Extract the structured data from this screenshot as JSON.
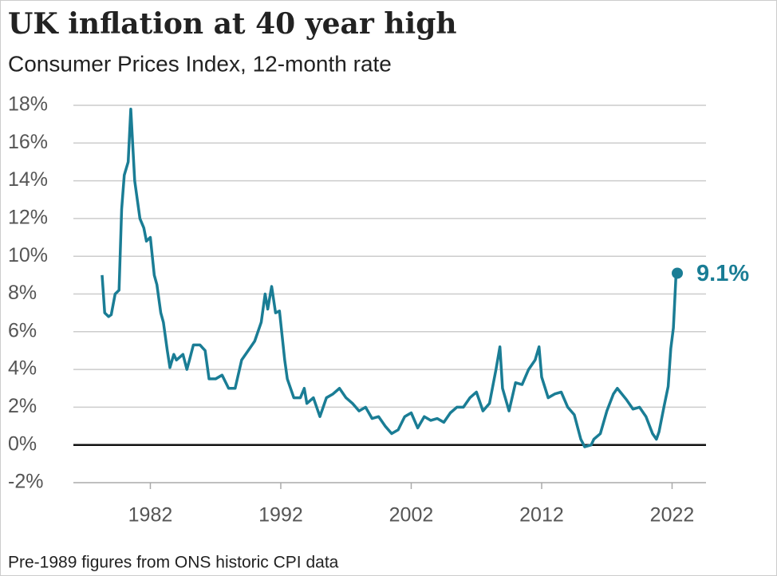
{
  "chart_data": {
    "type": "line",
    "title": "UK inflation at 40 year high",
    "subtitle": "Consumer Prices Index, 12-month rate",
    "footnote": "Pre-1989 figures from ONS historic CPI data",
    "x": [
      1978.3,
      1978.5,
      1978.8,
      1979.0,
      1979.3,
      1979.6,
      1979.8,
      1980.0,
      1980.3,
      1980.5,
      1980.8,
      1981.0,
      1981.2,
      1981.5,
      1981.7,
      1982.0,
      1982.3,
      1982.5,
      1982.8,
      1983.0,
      1983.3,
      1983.5,
      1983.8,
      1984.0,
      1984.5,
      1984.8,
      1985.0,
      1985.3,
      1985.8,
      1986.2,
      1986.5,
      1987.0,
      1987.5,
      1988.0,
      1988.5,
      1989.0,
      1989.5,
      1990.0,
      1990.5,
      1990.8,
      1991.0,
      1991.3,
      1991.6,
      1991.9,
      1992.3,
      1992.5,
      1993.0,
      1993.5,
      1993.8,
      1994.0,
      1994.5,
      1995.0,
      1995.5,
      1996.0,
      1996.5,
      1997.0,
      1997.5,
      1998.0,
      1998.5,
      1999.0,
      1999.5,
      2000.0,
      2000.5,
      2001.0,
      2001.5,
      2002.0,
      2002.5,
      2003.0,
      2003.5,
      2004.0,
      2004.5,
      2005.0,
      2005.5,
      2006.0,
      2006.5,
      2007.0,
      2007.5,
      2008.0,
      2008.5,
      2008.8,
      2009.0,
      2009.5,
      2010.0,
      2010.5,
      2011.0,
      2011.5,
      2011.8,
      2012.0,
      2012.5,
      2013.0,
      2013.5,
      2014.0,
      2014.5,
      2015.0,
      2015.3,
      2015.8,
      2016.0,
      2016.5,
      2017.0,
      2017.5,
      2017.8,
      2018.5,
      2019.0,
      2019.5,
      2020.0,
      2020.5,
      2020.8,
      2021.0,
      2021.4,
      2021.7,
      2021.9,
      2022.1,
      2022.3,
      2022.4
    ],
    "series": [
      {
        "name": "CPI",
        "color": "#1a7d95",
        "values": [
          9.0,
          7.0,
          6.8,
          6.9,
          8.0,
          8.2,
          12.5,
          14.3,
          15.0,
          17.8,
          14.0,
          13.0,
          12.0,
          11.5,
          10.8,
          11.0,
          9.0,
          8.5,
          7.0,
          6.5,
          5.0,
          4.1,
          4.8,
          4.5,
          4.8,
          4.0,
          4.5,
          5.3,
          5.3,
          5.0,
          3.5,
          3.5,
          3.7,
          3.0,
          3.0,
          4.5,
          5.0,
          5.5,
          6.5,
          8.0,
          7.2,
          8.4,
          7.0,
          7.1,
          4.5,
          3.5,
          2.5,
          2.5,
          3.0,
          2.2,
          2.5,
          1.5,
          2.5,
          2.7,
          3.0,
          2.5,
          2.2,
          1.8,
          2.0,
          1.4,
          1.5,
          1.0,
          0.6,
          0.8,
          1.5,
          1.7,
          0.9,
          1.5,
          1.3,
          1.4,
          1.2,
          1.7,
          2.0,
          2.0,
          2.5,
          2.8,
          1.8,
          2.2,
          4.0,
          5.2,
          3.0,
          1.8,
          3.3,
          3.2,
          4.0,
          4.5,
          5.2,
          3.6,
          2.5,
          2.7,
          2.8,
          2.0,
          1.6,
          0.3,
          -0.1,
          0.0,
          0.3,
          0.6,
          1.8,
          2.7,
          3.0,
          2.4,
          1.9,
          2.0,
          1.5,
          0.6,
          0.3,
          0.7,
          2.1,
          3.1,
          5.1,
          6.2,
          9.0,
          9.1
        ]
      }
    ],
    "end_label": "9.1%",
    "xlim": [
      1976.1,
      2024.6
    ],
    "xticks": [
      1982,
      1992,
      2002,
      2012,
      2022
    ],
    "ylim": [
      -2,
      18
    ],
    "yticks": [
      {
        "value": -2,
        "label": "-2%"
      },
      {
        "value": 0,
        "label": "0%"
      },
      {
        "value": 2,
        "label": "2%"
      },
      {
        "value": 4,
        "label": "4%"
      },
      {
        "value": 6,
        "label": "6%"
      },
      {
        "value": 8,
        "label": "8%"
      },
      {
        "value": 10,
        "label": "10%"
      },
      {
        "value": 12,
        "label": "12%"
      },
      {
        "value": 14,
        "label": "14%"
      },
      {
        "value": 16,
        "label": "16%"
      },
      {
        "value": 18,
        "label": "18%"
      }
    ],
    "grid": true
  }
}
